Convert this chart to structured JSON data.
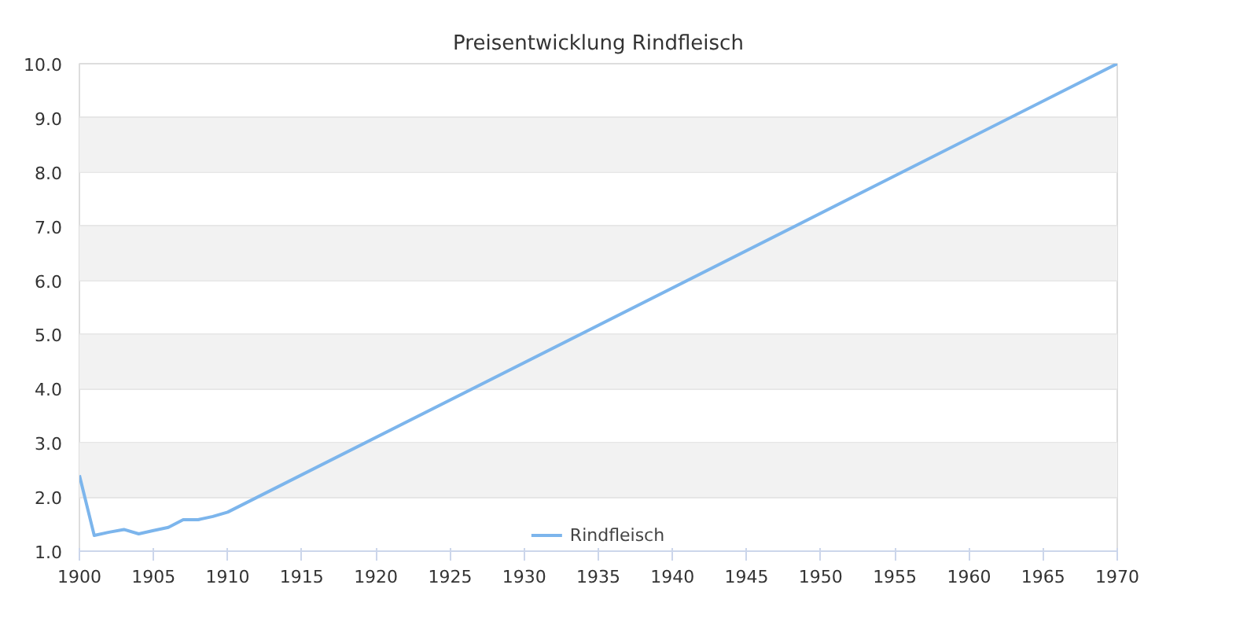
{
  "chart_data": {
    "type": "line",
    "title": "Preisentwicklung Rindfleisch",
    "x": [
      1900,
      1901,
      1902,
      1903,
      1904,
      1905,
      1906,
      1907,
      1908,
      1909,
      1910,
      1970
    ],
    "series": [
      {
        "name": "Rindfleisch",
        "color": "#7cb5ec",
        "values": [
          2.4,
          1.29,
          1.35,
          1.4,
          1.32,
          1.38,
          1.44,
          1.58,
          1.58,
          1.64,
          1.72,
          10.0
        ]
      }
    ],
    "xlim": [
      1900,
      1970
    ],
    "xticks": [
      1900,
      1905,
      1910,
      1915,
      1920,
      1925,
      1930,
      1935,
      1940,
      1945,
      1950,
      1955,
      1960,
      1965,
      1970
    ],
    "ylim": [
      1,
      10
    ],
    "yticks": [
      {
        "value": 1,
        "label": "1.0"
      },
      {
        "value": 2,
        "label": "2.0"
      },
      {
        "value": 3,
        "label": "3.0"
      },
      {
        "value": 4,
        "label": "4.0"
      },
      {
        "value": 5,
        "label": "5.0"
      },
      {
        "value": 6,
        "label": "6.0"
      },
      {
        "value": 7,
        "label": "7.0"
      },
      {
        "value": 8,
        "label": "8.0"
      },
      {
        "value": 9,
        "label": "9.0"
      },
      {
        "value": 10,
        "label": "10.0"
      }
    ],
    "bands": [
      {
        "axis": "y",
        "from": 2,
        "to": 3,
        "color": "#f2f2f2"
      },
      {
        "axis": "y",
        "from": 4,
        "to": 5,
        "color": "#f2f2f2"
      },
      {
        "axis": "y",
        "from": 6,
        "to": 7,
        "color": "#f2f2f2"
      },
      {
        "axis": "y",
        "from": 8,
        "to": 9,
        "color": "#f2f2f2"
      }
    ],
    "grid": "y",
    "legend": "bottom",
    "marker": "none",
    "line_style": "solid"
  }
}
